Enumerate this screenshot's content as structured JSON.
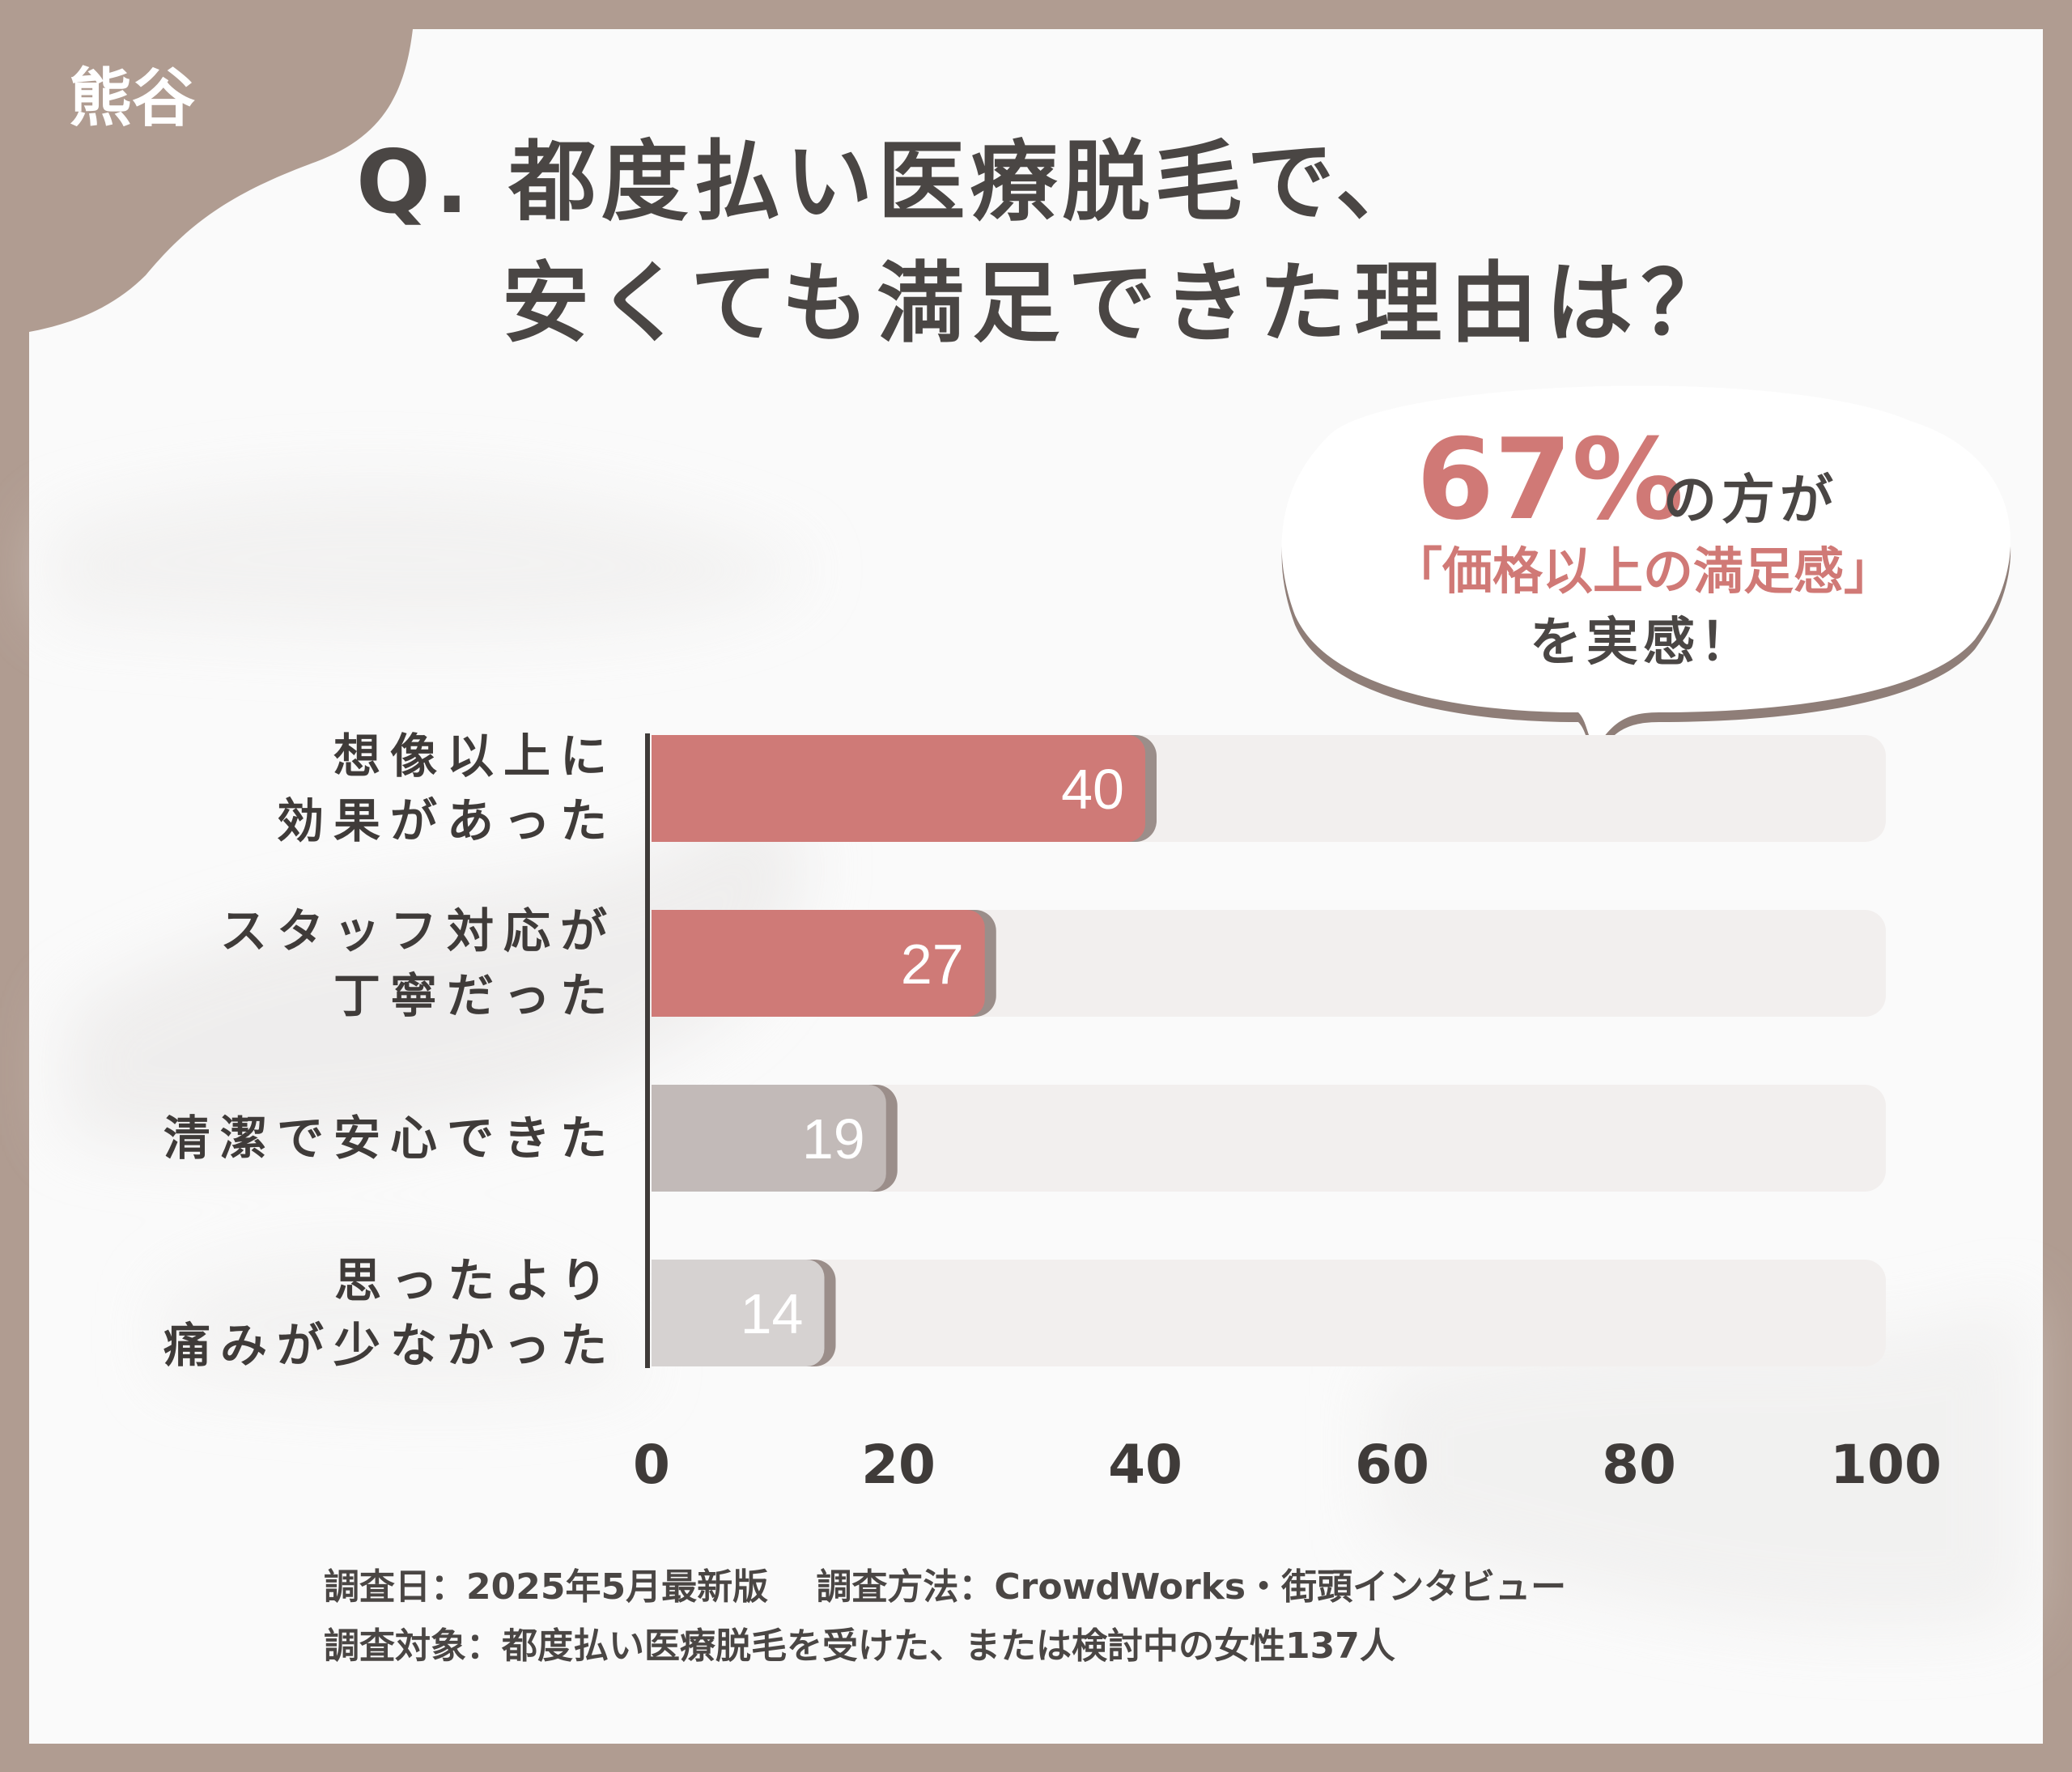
{
  "corner_tag": "熊谷",
  "title": {
    "line1": "Q. 都度払い医療脱毛で、",
    "line2": "安くても満足できた理由は？"
  },
  "callout": {
    "percent": "67%",
    "after_percent": "の方が",
    "line2": "「価格以上の満足感」",
    "line3": "を実感！"
  },
  "footer": {
    "line1": "調査日：2025年5月最新版　 調査方法：CrowdWorks・街頭インタビュー",
    "line2": "調査対象：都度払い医療脱毛を受けた、または検討中の女性137人"
  },
  "colors": {
    "frame": "#b09c91",
    "panel": "#fafafa",
    "highlight_bar": "#cf7a77",
    "mid_bar": "#c2bab8",
    "light_bar": "#d6d2d1",
    "track": "#f2efee",
    "callout_accent": "#d07976",
    "text": "#3f3b39"
  },
  "chart_data": {
    "type": "bar",
    "orientation": "horizontal",
    "categories": [
      [
        "想像以上に",
        "効果があった"
      ],
      [
        "スタッフ対応が",
        "丁寧だった"
      ],
      [
        "清潔で安心できた"
      ],
      [
        "思ったより",
        "痛みが少なかった"
      ]
    ],
    "values": [
      40,
      27,
      19,
      14
    ],
    "bar_styles": [
      "highlight",
      "highlight",
      "mid",
      "light"
    ],
    "xlim": [
      0,
      100
    ],
    "xticks": [
      "0",
      "20",
      "40",
      "60",
      "80",
      "100"
    ],
    "grid": false,
    "xlabel": "",
    "ylabel": ""
  }
}
